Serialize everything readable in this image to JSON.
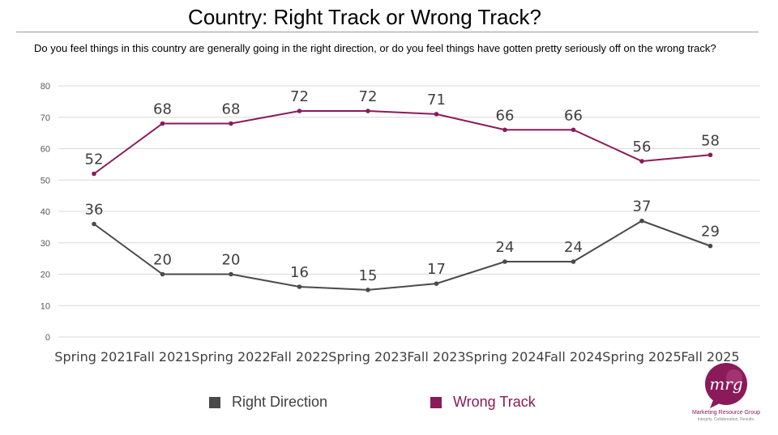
{
  "title": "Country: Right Track or Wrong Track?",
  "question": "Do you feel things in this country are generally going in the right direction, or do you feel things have gotten pretty seriously off on the wrong track?",
  "colors": {
    "right_direction": "#4a4a4a",
    "wrong_track": "#8b1a5a",
    "grid": "#d9d9d9",
    "brand": "#8b1a5a"
  },
  "chart_data": {
    "type": "line",
    "categories": [
      "Spring 2021",
      "Fall 2021",
      "Spring 2022",
      "Fall 2022",
      "Spring 2023",
      "Fall 2023",
      "Spring 2024",
      "Fall 2024",
      "Spring 2025",
      "Fall 2025"
    ],
    "series": [
      {
        "name": "Right Direction",
        "values": [
          36,
          20,
          20,
          16,
          15,
          17,
          24,
          24,
          37,
          29
        ]
      },
      {
        "name": "Wrong Track",
        "values": [
          52,
          68,
          68,
          72,
          72,
          71,
          66,
          66,
          56,
          58
        ]
      }
    ],
    "y_ticks": [
      0,
      10,
      20,
      30,
      40,
      50,
      60,
      70,
      80
    ],
    "ylim": [
      0,
      80
    ],
    "grid": true,
    "legend_position": "bottom"
  },
  "logo": {
    "monogram": "mrg",
    "name": "Marketing Resource Group",
    "tagline": "Integrity. Collaboration. Results."
  }
}
